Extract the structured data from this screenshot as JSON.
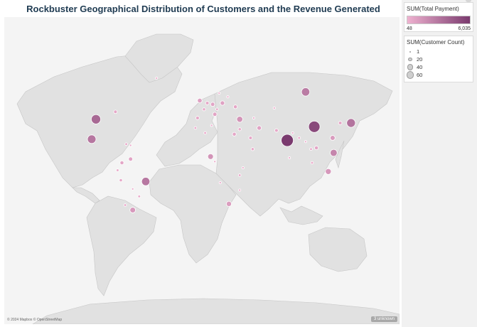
{
  "title": "Rockbuster Geographical Distribution of Customers and the Revenue Generated",
  "attribution": "© 2024 Mapbox © OpenStreetMap",
  "unknown_badge": "3 unknown",
  "colors": {
    "low": "#efb2d0",
    "high": "#7a3a6e",
    "land": "#e1e1e1",
    "water": "#f4f4f4"
  },
  "legend_payment": {
    "title": "SUM(Total Payment)",
    "min_label": "48",
    "max_label": "6,035",
    "min": 48,
    "max": 6035
  },
  "legend_count": {
    "title": "SUM(Customer Count)",
    "items": [
      {
        "label": "1",
        "value": 1
      },
      {
        "label": "20",
        "value": 20
      },
      {
        "label": "40",
        "value": 40
      },
      {
        "label": "60",
        "value": 60
      }
    ]
  },
  "chart_data": {
    "type": "map-bubble",
    "color_by": "SUM(Total Payment)",
    "size_by": "SUM(Customer Count)",
    "markers": [
      {
        "name": "India",
        "lon": 79,
        "lat": 22,
        "customers": 60,
        "payment": 6035
      },
      {
        "name": "China",
        "lon": 104,
        "lat": 33,
        "customers": 53,
        "payment": 5251
      },
      {
        "name": "United States",
        "lon": -98,
        "lat": 39,
        "customers": 36,
        "payment": 3685
      },
      {
        "name": "Japan",
        "lon": 138,
        "lat": 36,
        "customers": 31,
        "payment": 3122
      },
      {
        "name": "Mexico",
        "lon": -102,
        "lat": 23,
        "customers": 30,
        "payment": 2985
      },
      {
        "name": "Brazil",
        "lon": -52,
        "lat": -11,
        "customers": 28,
        "payment": 2919
      },
      {
        "name": "Russia",
        "lon": 96,
        "lat": 61,
        "customers": 28,
        "payment": 2766
      },
      {
        "name": "Philippines",
        "lon": 122,
        "lat": 12,
        "customers": 20,
        "payment": 2219
      },
      {
        "name": "Indonesia",
        "lon": 117,
        "lat": -3,
        "customers": 14,
        "payment": 1352
      },
      {
        "name": "Turkey",
        "lon": 35,
        "lat": 39,
        "customers": 15,
        "payment": 1498
      },
      {
        "name": "Nigeria",
        "lon": 8,
        "lat": 9,
        "customers": 13,
        "payment": 1511
      },
      {
        "name": "Argentina",
        "lon": -64,
        "lat": -34,
        "customers": 13,
        "payment": 1298
      },
      {
        "name": "Taiwan",
        "lon": 121,
        "lat": 24,
        "customers": 10,
        "payment": 1155
      },
      {
        "name": "South Africa",
        "lon": 25,
        "lat": -29,
        "customers": 11,
        "payment": 1069
      },
      {
        "name": "Iran",
        "lon": 53,
        "lat": 32,
        "customers": 8,
        "payment": 811
      },
      {
        "name": "United Kingdom",
        "lon": -2,
        "lat": 54,
        "customers": 9,
        "payment": 850
      },
      {
        "name": "Germany",
        "lon": 10,
        "lat": 51,
        "customers": 7,
        "payment": 741
      },
      {
        "name": "Vietnam",
        "lon": 106,
        "lat": 16,
        "customers": 6,
        "payment": 676
      },
      {
        "name": "Colombia",
        "lon": -74,
        "lat": 4,
        "customers": 6,
        "payment": 661
      },
      {
        "name": "Venezuela",
        "lon": -66,
        "lat": 7,
        "customers": 7,
        "payment": 732
      },
      {
        "name": "Peru",
        "lon": -75,
        "lat": -10,
        "customers": 4,
        "payment": 432
      },
      {
        "name": "Egypt",
        "lon": 30,
        "lat": 27,
        "customers": 6,
        "payment": 618
      },
      {
        "name": "Italy",
        "lon": 12,
        "lat": 43,
        "customers": 7,
        "payment": 768
      },
      {
        "name": "Spain",
        "lon": -4,
        "lat": 40,
        "customers": 5,
        "payment": 510
      },
      {
        "name": "France",
        "lon": 2,
        "lat": 47,
        "customers": 4,
        "payment": 428
      },
      {
        "name": "Poland",
        "lon": 19,
        "lat": 52,
        "customers": 8,
        "payment": 847
      },
      {
        "name": "Ukraine",
        "lon": 31,
        "lat": 49,
        "customers": 6,
        "payment": 632
      },
      {
        "name": "Saudi Arabia",
        "lon": 45,
        "lat": 24,
        "customers": 5,
        "payment": 520
      },
      {
        "name": "Pakistan",
        "lon": 69,
        "lat": 30,
        "customers": 5,
        "payment": 514
      },
      {
        "name": "Thailand",
        "lon": 101,
        "lat": 15,
        "customers": 3,
        "payment": 318
      },
      {
        "name": "South Korea",
        "lon": 128,
        "lat": 36,
        "customers": 5,
        "payment": 525
      },
      {
        "name": "Canada",
        "lon": -80,
        "lat": 45,
        "customers": 5,
        "payment": 559
      },
      {
        "name": "Chile",
        "lon": -71,
        "lat": -30,
        "customers": 3,
        "payment": 316
      },
      {
        "name": "Ecuador",
        "lon": -78,
        "lat": -2,
        "customers": 3,
        "payment": 286
      },
      {
        "name": "Kenya",
        "lon": 38,
        "lat": 0,
        "customers": 2,
        "payment": 214
      },
      {
        "name": "Malaysia",
        "lon": 102,
        "lat": 4,
        "customers": 3,
        "payment": 283
      },
      {
        "name": "Yemen",
        "lon": 47,
        "lat": 15,
        "customers": 4,
        "payment": 402
      },
      {
        "name": "Israel",
        "lon": 35,
        "lat": 31,
        "customers": 4,
        "payment": 400
      },
      {
        "name": "Algeria",
        "lon": 3,
        "lat": 28,
        "customers": 3,
        "payment": 287
      },
      {
        "name": "Cameroon",
        "lon": 12,
        "lat": 5,
        "customers": 2,
        "payment": 203
      },
      {
        "name": "Bangladesh",
        "lon": 90,
        "lat": 24,
        "customers": 3,
        "payment": 286
      },
      {
        "name": "Dominican Republic",
        "lon": -70,
        "lat": 19,
        "customers": 3,
        "payment": 323
      },
      {
        "name": "Puerto Rico",
        "lon": -66,
        "lat": 18,
        "customers": 2,
        "payment": 204
      },
      {
        "name": "Paraguay",
        "lon": -58,
        "lat": -23,
        "customers": 3,
        "payment": 285
      },
      {
        "name": "Greenland",
        "lon": -42,
        "lat": 72,
        "customers": 1,
        "payment": 108
      },
      {
        "name": "Netherlands",
        "lon": 5,
        "lat": 52,
        "customers": 5,
        "payment": 518
      },
      {
        "name": "Austria",
        "lon": 14,
        "lat": 47,
        "customers": 3,
        "payment": 296
      },
      {
        "name": "Sweden",
        "lon": 16,
        "lat": 60,
        "customers": 1,
        "payment": 98
      },
      {
        "name": "Latvia",
        "lon": 24,
        "lat": 57,
        "customers": 2,
        "payment": 212
      },
      {
        "name": "Azerbaijan",
        "lon": 48,
        "lat": 40,
        "customers": 2,
        "payment": 190
      },
      {
        "name": "Kazakhstan",
        "lon": 67,
        "lat": 48,
        "customers": 2,
        "payment": 210
      },
      {
        "name": "Myanmar",
        "lon": 96,
        "lat": 21,
        "customers": 1,
        "payment": 110
      },
      {
        "name": "Nepal",
        "lon": 84,
        "lat": 28,
        "customers": 1,
        "payment": 104
      },
      {
        "name": "Sri Lanka",
        "lon": 81,
        "lat": 8,
        "customers": 1,
        "payment": 94
      },
      {
        "name": "Tanzania",
        "lon": 35,
        "lat": -6,
        "customers": 3,
        "payment": 272
      },
      {
        "name": "Mozambique",
        "lon": 35,
        "lat": -18,
        "customers": 2,
        "payment": 210
      },
      {
        "name": "Angola",
        "lon": 17,
        "lat": -12,
        "customers": 2,
        "payment": 196
      },
      {
        "name": "Morocco",
        "lon": -6,
        "lat": 32,
        "customers": 3,
        "payment": 286
      },
      {
        "name": "Bolivia",
        "lon": -64,
        "lat": -17,
        "customers": 2,
        "payment": 198
      },
      {
        "name": "Tunisia",
        "lon": 9,
        "lat": 34,
        "customers": 1,
        "payment": 48
      }
    ]
  }
}
